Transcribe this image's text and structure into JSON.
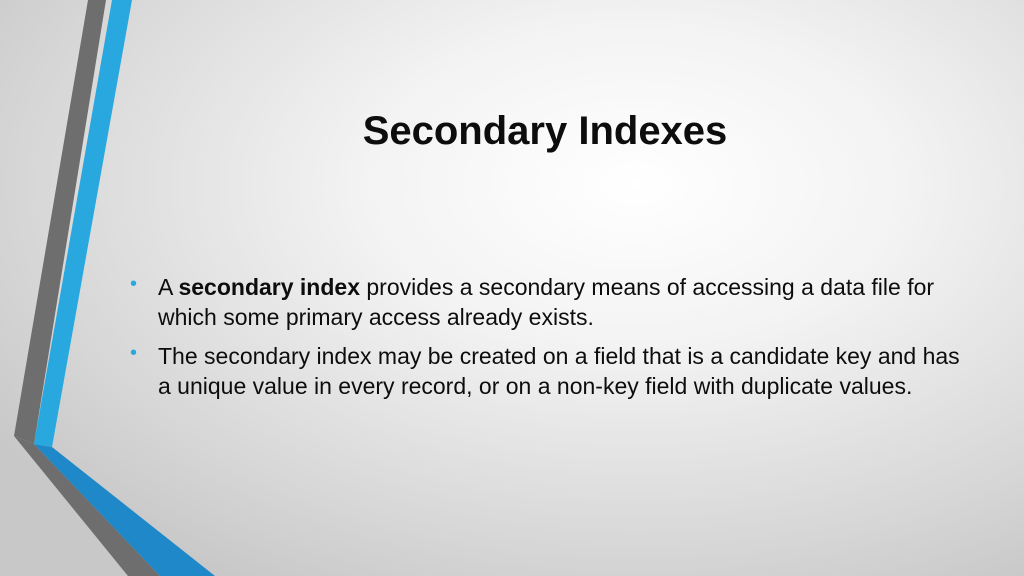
{
  "slide": {
    "title": "Secondary Indexes",
    "bullet_glyph": "•",
    "bullets": [
      {
        "prefix": "A ",
        "bold": "secondary index",
        "suffix": " provides a secondary means of accessing a data file for which some primary access already exists."
      },
      {
        "text": "The secondary index may be created on a field that is a candidate key and has a unique value in every record, or on a non-key field with duplicate values."
      }
    ]
  },
  "colors": {
    "accent_blue": "#29a8e0",
    "accent_dark_blue": "#1e88c8",
    "accent_gray": "#6e6e6e",
    "text": "#0d0d0d"
  }
}
